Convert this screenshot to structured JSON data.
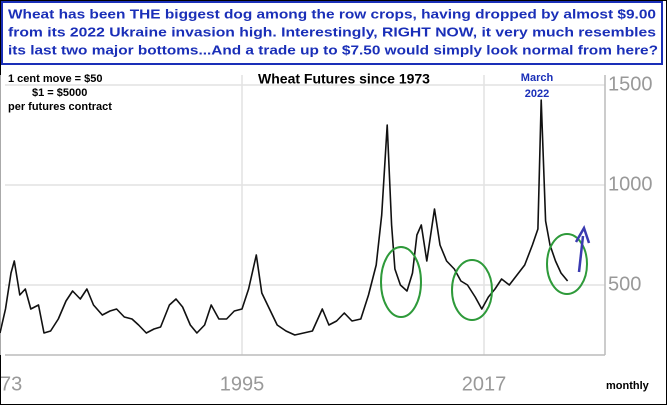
{
  "header": {
    "lines": [
      "Wheat has been THE biggest dog among the row crops, having dropped by almost $9.00",
      "from its 2022 Ukraine invasion high. Interestingly, RIGHT NOW, it very much resembles",
      "its last two major bottoms...And a trade up to $7.50 would simply look normal from here?"
    ]
  },
  "chart_data": {
    "type": "line",
    "title": "Wheat Futures since 1973",
    "annotations": [
      "1 cent move = $50",
      "$1 = $5000",
      "per futures contract",
      "March",
      "2022",
      "monthly"
    ],
    "x": [
      1973.0,
      1973.5,
      1974.0,
      1974.3,
      1974.8,
      1975.3,
      1975.8,
      1976.5,
      1977.0,
      1977.6,
      1978.3,
      1979.0,
      1979.6,
      1980.3,
      1980.9,
      1981.5,
      1982.3,
      1983.0,
      1983.6,
      1984.3,
      1985.0,
      1985.6,
      1986.3,
      1987.0,
      1987.6,
      1988.4,
      1989.0,
      1989.6,
      1990.3,
      1990.9,
      1991.6,
      1992.2,
      1992.9,
      1993.6,
      1994.3,
      1995.0,
      1995.6,
      1996.3,
      1996.8,
      1997.5,
      1998.2,
      1999.0,
      1999.8,
      2000.6,
      2001.4,
      2002.3,
      2002.9,
      2003.6,
      2004.3,
      2005.0,
      2005.8,
      2006.5,
      2007.2,
      2007.7,
      2008.2,
      2008.6,
      2008.9,
      2009.4,
      2010.0,
      2010.5,
      2010.9,
      2011.3,
      2011.8,
      2012.5,
      2013.0,
      2013.6,
      2014.3,
      2014.9,
      2015.5,
      2016.2,
      2016.8,
      2017.4,
      2018.0,
      2018.6,
      2019.3,
      2020.0,
      2020.7,
      2021.4,
      2021.9,
      2022.2,
      2022.6,
      2023.0,
      2023.5,
      2024.0,
      2024.6
    ],
    "series": [
      {
        "name": "Wheat",
        "color": "#111111",
        "values": [
          260,
          380,
          560,
          620,
          450,
          480,
          380,
          400,
          260,
          270,
          330,
          420,
          470,
          430,
          480,
          400,
          350,
          370,
          380,
          340,
          330,
          300,
          260,
          280,
          290,
          400,
          430,
          390,
          300,
          260,
          300,
          400,
          330,
          330,
          370,
          380,
          480,
          650,
          460,
          380,
          300,
          270,
          250,
          260,
          270,
          380,
          300,
          320,
          360,
          320,
          330,
          450,
          600,
          850,
          1300,
          800,
          580,
          500,
          470,
          560,
          750,
          800,
          620,
          880,
          700,
          620,
          580,
          520,
          500,
          440,
          380,
          440,
          480,
          530,
          500,
          550,
          600,
          700,
          780,
          1425,
          820,
          700,
          620,
          560,
          520
        ]
      }
    ],
    "xlim": [
      1973,
      2028
    ],
    "ylim": [
      150,
      1550
    ],
    "xticks": [
      {
        "value": 1973,
        "label": "73"
      },
      1995,
      2017
    ],
    "yticks": [
      500,
      1000,
      1500
    ],
    "grid": true
  }
}
